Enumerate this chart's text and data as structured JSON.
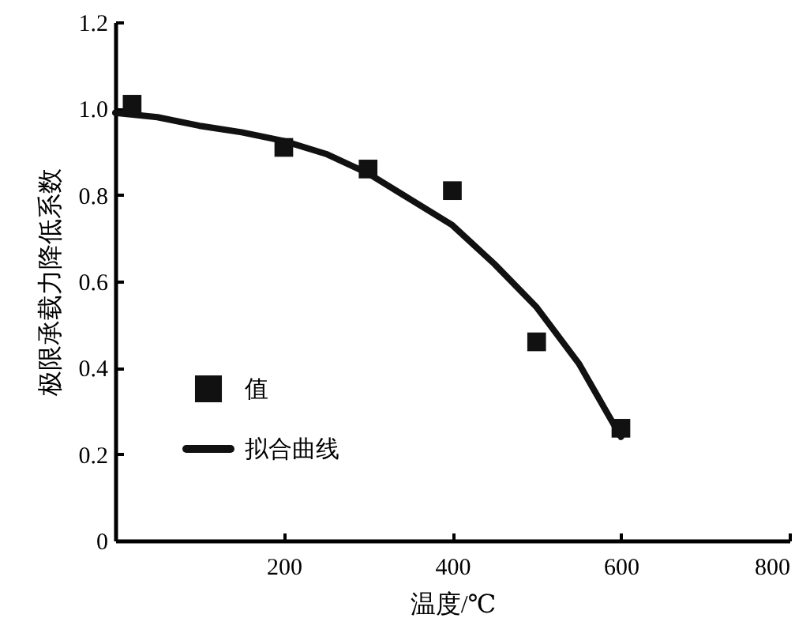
{
  "chart_data": {
    "type": "scatter",
    "xlabel": "温度/℃",
    "ylabel": "极限承载力降低系数",
    "xlim": [
      0,
      800
    ],
    "xticks": [
      200,
      400,
      600,
      800
    ],
    "ylim": [
      0,
      1.2
    ],
    "yticks": [
      0,
      0.2,
      0.4,
      0.6,
      0.8,
      {
        "value": 1,
        "label": "1.0"
      },
      1.2
    ],
    "legend": "bottom left",
    "grid": false,
    "series": [
      {
        "name": "值",
        "marker": "square",
        "color": "#111111",
        "x": [
          20,
          200,
          300,
          400,
          500,
          600
        ],
        "values": [
          1.01,
          0.91,
          0.86,
          0.81,
          0.46,
          0.26
        ]
      },
      {
        "name": "拟合曲线",
        "type": "line",
        "marker": "none",
        "color": "#111111",
        "x": [
          0,
          50,
          100,
          150,
          200,
          250,
          300,
          350,
          400,
          450,
          500,
          550,
          600
        ],
        "values": [
          0.99,
          0.98,
          0.96,
          0.945,
          0.925,
          0.895,
          0.85,
          0.79,
          0.73,
          0.64,
          0.54,
          0.41,
          0.24
        ]
      }
    ]
  }
}
